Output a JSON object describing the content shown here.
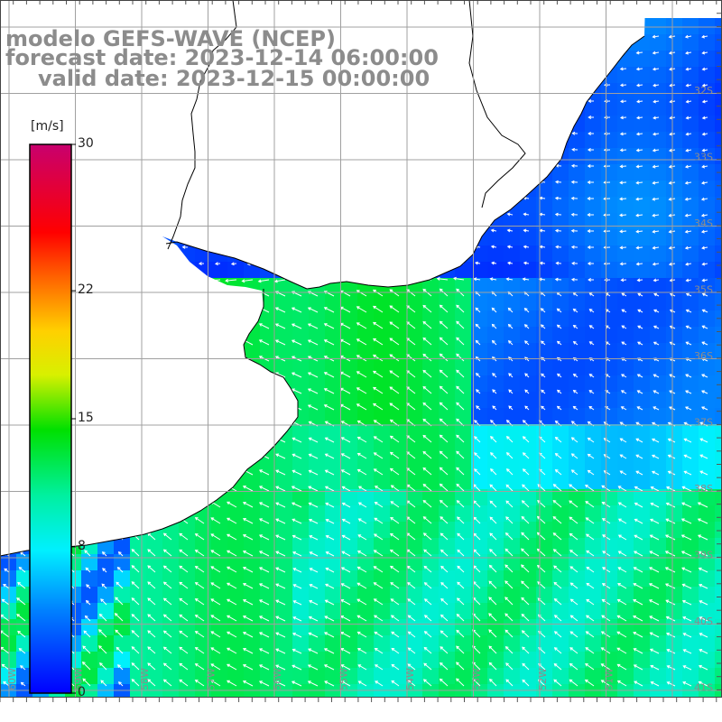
{
  "title": {
    "line1": "modelo GEFS-WAVE (NCEP)",
    "line2": "forecast date: 2023-12-14 06:00:00",
    "line3": "valid date: 2023-12-15 00:00:00"
  },
  "colorbar": {
    "unit": "[m/s]",
    "ticks": [
      {
        "label": "30",
        "value": 30
      },
      {
        "label": "22",
        "value": 22
      },
      {
        "label": "15",
        "value": 15
      },
      {
        "label": "8",
        "value": 8
      },
      {
        "label": "0",
        "value": 0
      }
    ],
    "range": [
      0,
      30
    ]
  },
  "lat_labels": [
    "32S",
    "33S",
    "34S",
    "35S",
    "36S",
    "37S",
    "38S",
    "39S",
    "40S",
    "41S"
  ],
  "lon_labels": [
    "60W",
    "59W",
    "58W",
    "57W",
    "56W",
    "55W",
    "54W",
    "53W",
    "52W",
    "51W"
  ],
  "colors": {
    "land": "#ffffff",
    "grid": "#a0a0a0",
    "coast": "#000000",
    "label": "#8c8c8c",
    "arrow": "#ffffff"
  },
  "field_summary": "wind speed shading with white direction arrows"
}
